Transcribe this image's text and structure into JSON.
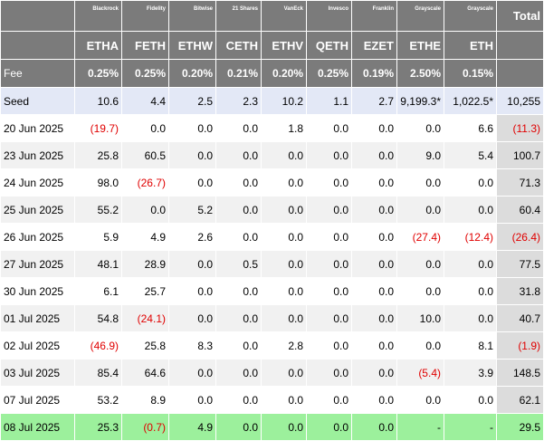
{
  "table": {
    "issuers": [
      "Blackrock",
      "Fidelity",
      "Bitwise",
      "21 Shares",
      "VanEck",
      "Invesco",
      "Franklin",
      "Grayscale",
      "Grayscale"
    ],
    "total_label": "Total",
    "tickers": [
      "ETHA",
      "FETH",
      "ETHW",
      "CETH",
      "ETHV",
      "QETH",
      "EZET",
      "ETHE",
      "ETH"
    ],
    "fee_label": "Fee",
    "fees": [
      "0.25%",
      "0.25%",
      "0.20%",
      "0.21%",
      "0.20%",
      "0.25%",
      "0.19%",
      "2.50%",
      "0.15%"
    ],
    "rows": [
      {
        "label": "Seed",
        "values": [
          "10.6",
          "4.4",
          "2.5",
          "2.3",
          "10.2",
          "1.1",
          "2.7",
          "9,199.3*",
          "1,022.5*"
        ],
        "total": "10,255"
      },
      {
        "label": "20 Jun 2025",
        "values": [
          "(19.7)",
          "0.0",
          "0.0",
          "0.0",
          "1.8",
          "0.0",
          "0.0",
          "0.0",
          "6.6"
        ],
        "total": "(11.3)"
      },
      {
        "label": "23 Jun 2025",
        "values": [
          "25.8",
          "60.5",
          "0.0",
          "0.0",
          "0.0",
          "0.0",
          "0.0",
          "9.0",
          "5.4"
        ],
        "total": "100.7"
      },
      {
        "label": "24 Jun 2025",
        "values": [
          "98.0",
          "(26.7)",
          "0.0",
          "0.0",
          "0.0",
          "0.0",
          "0.0",
          "0.0",
          "0.0"
        ],
        "total": "71.3"
      },
      {
        "label": "25 Jun 2025",
        "values": [
          "55.2",
          "0.0",
          "5.2",
          "0.0",
          "0.0",
          "0.0",
          "0.0",
          "0.0",
          "0.0"
        ],
        "total": "60.4"
      },
      {
        "label": "26 Jun 2025",
        "values": [
          "5.9",
          "4.9",
          "2.6",
          "0.0",
          "0.0",
          "0.0",
          "0.0",
          "(27.4)",
          "(12.4)"
        ],
        "total": "(26.4)"
      },
      {
        "label": "27 Jun 2025",
        "values": [
          "48.1",
          "28.9",
          "0.0",
          "0.5",
          "0.0",
          "0.0",
          "0.0",
          "0.0",
          "0.0"
        ],
        "total": "77.5"
      },
      {
        "label": "30 Jun 2025",
        "values": [
          "6.1",
          "25.7",
          "0.0",
          "0.0",
          "0.0",
          "0.0",
          "0.0",
          "0.0",
          "0.0"
        ],
        "total": "31.8"
      },
      {
        "label": "01 Jul 2025",
        "values": [
          "54.8",
          "(24.1)",
          "0.0",
          "0.0",
          "0.0",
          "0.0",
          "0.0",
          "10.0",
          "0.0"
        ],
        "total": "40.7"
      },
      {
        "label": "02 Jul 2025",
        "values": [
          "(46.9)",
          "25.8",
          "8.3",
          "0.0",
          "2.8",
          "0.0",
          "0.0",
          "0.0",
          "8.1"
        ],
        "total": "(1.9)"
      },
      {
        "label": "03 Jul 2025",
        "values": [
          "85.4",
          "64.6",
          "0.0",
          "0.0",
          "0.0",
          "0.0",
          "0.0",
          "(5.4)",
          "3.9"
        ],
        "total": "148.5"
      },
      {
        "label": "07 Jul 2025",
        "values": [
          "53.2",
          "8.9",
          "0.0",
          "0.0",
          "0.0",
          "0.0",
          "0.0",
          "0.0",
          "0.0"
        ],
        "total": "62.1"
      },
      {
        "label": "08 Jul 2025",
        "values": [
          "25.3",
          "(0.7)",
          "4.9",
          "0.0",
          "0.0",
          "0.0",
          "0.0",
          "-",
          "-"
        ],
        "total": "29.5"
      }
    ]
  },
  "colors": {
    "header_bg": "#7b7b7b",
    "seed_row_bg": "#e3e8f6",
    "latest_row_bg": "#9cf09c",
    "negative_text": "#e00000"
  }
}
